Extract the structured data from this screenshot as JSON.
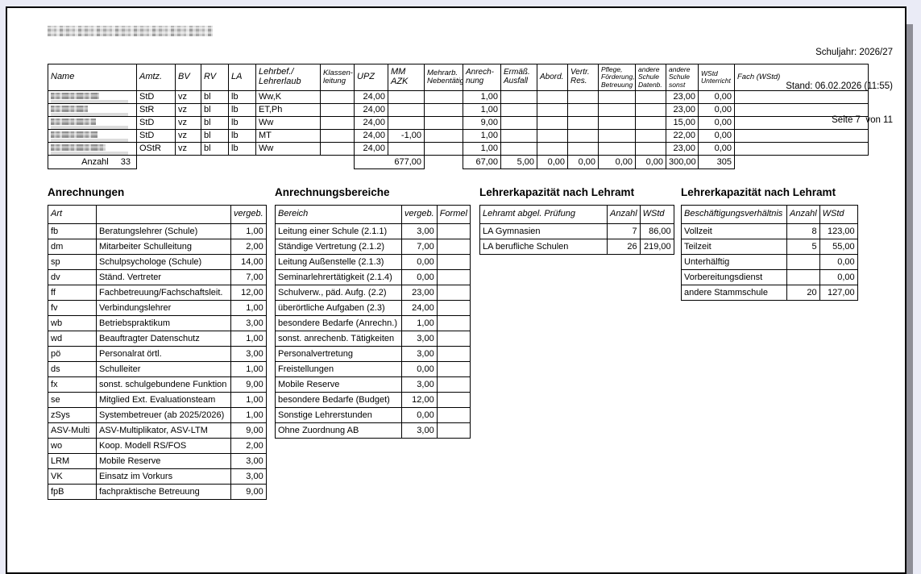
{
  "header": {
    "schuljahr": "Schuljahr: 2026/27",
    "stand": "Stand: 06.02.2026 (11:55)",
    "seite": "Seite 7  von 11"
  },
  "main_table": {
    "columns": [
      "Name",
      "Amtz.",
      "BV",
      "RV",
      "LA",
      "Lehrbef./\nLehrerlaub",
      "Klassen-\nleitung",
      "UPZ",
      "MM AZK",
      "Mehrarb.\nNebentätigk",
      "Anrech-\nnung",
      "Ermäß.\nAusfall",
      "Abord.",
      "Vertr.\nRes.",
      "Pflege,\nFörderung,\nBetreuung",
      "andere\nSchule\nDatenb.",
      "andere\nSchule\nsonst",
      "WStd\nUnterricht",
      "Fach (WStd)"
    ],
    "rows": [
      [
        "",
        "StD",
        "vz",
        "bl",
        "lb",
        "Ww,K",
        "",
        "24,00",
        "",
        "",
        "1,00",
        "",
        "",
        "",
        "",
        "",
        "23,00",
        "0,00",
        ""
      ],
      [
        "",
        "StR",
        "vz",
        "bl",
        "lb",
        "ET,Ph",
        "",
        "24,00",
        "",
        "",
        "1,00",
        "",
        "",
        "",
        "",
        "",
        "23,00",
        "0,00",
        ""
      ],
      [
        "",
        "StD",
        "vz",
        "bl",
        "lb",
        "Ww",
        "",
        "24,00",
        "",
        "",
        "9,00",
        "",
        "",
        "",
        "",
        "",
        "15,00",
        "0,00",
        ""
      ],
      [
        "",
        "StD",
        "vz",
        "bl",
        "lb",
        "MT",
        "",
        "24,00",
        "-1,00",
        "",
        "1,00",
        "",
        "",
        "",
        "",
        "",
        "22,00",
        "0,00",
        ""
      ],
      [
        "",
        "OStR",
        "vz",
        "bl",
        "lb",
        "Ww",
        "",
        "24,00",
        "",
        "",
        "1,00",
        "",
        "",
        "",
        "",
        "",
        "23,00",
        "0,00",
        ""
      ]
    ],
    "totals": {
      "anzahl_label": "Anzahl",
      "anzahl_value": "33",
      "upz": "677,00",
      "anrechnung": "67,00",
      "ermaess_ausfall": "5,00",
      "abord": "0,00",
      "vertr_res": "0,00",
      "pflege": "0,00",
      "andere_schule_datenb": "0,00",
      "andere_schule_sonst": "300,00",
      "wstd_unterricht": "305"
    }
  },
  "anrechnungen": {
    "title": "Anrechnungen",
    "headers": [
      "Art",
      "",
      "vergeb."
    ],
    "rows": [
      [
        "fb",
        "Beratungslehrer (Schule)",
        "1,00"
      ],
      [
        "dm",
        "Mitarbeiter Schulleitung",
        "2,00"
      ],
      [
        "sp",
        "Schulpsychologe (Schule)",
        "14,00"
      ],
      [
        "dv",
        "Ständ. Vertreter",
        "7,00"
      ],
      [
        "ff",
        "Fachbetreuung/Fachschaftsleit.",
        "12,00"
      ],
      [
        "fv",
        "Verbindungslehrer",
        "1,00"
      ],
      [
        "wb",
        "Betriebspraktikum",
        "3,00"
      ],
      [
        "wd",
        "Beauftragter Datenschutz",
        "1,00"
      ],
      [
        "pö",
        "Personalrat örtl.",
        "3,00"
      ],
      [
        "ds",
        "Schulleiter",
        "1,00"
      ],
      [
        "fx",
        "sonst. schulgebundene Funktion",
        "9,00"
      ],
      [
        "se",
        "Mitglied Ext. Evaluationsteam",
        "1,00"
      ],
      [
        "zSys",
        "Systembetreuer (ab 2025/2026)",
        "1,00"
      ],
      [
        "ASV-Multi",
        "ASV-Multiplikator, ASV-LTM",
        "9,00"
      ],
      [
        "wo",
        "Koop. Modell RS/FOS",
        "2,00"
      ],
      [
        "LRM",
        "Mobile Reserve",
        "3,00"
      ],
      [
        "VK",
        "Einsatz im Vorkurs",
        "3,00"
      ],
      [
        "fpB",
        "fachpraktische Betreuung",
        "9,00"
      ]
    ]
  },
  "anrechnungsbereiche": {
    "title": "Anrechnungsbereiche",
    "headers": [
      "Bereich",
      "vergeb.",
      "Formel"
    ],
    "rows": [
      [
        "Leitung einer Schule (2.1.1)",
        "3,00",
        ""
      ],
      [
        "Ständige Vertretung (2.1.2)",
        "7,00",
        ""
      ],
      [
        "Leitung Außenstelle (2.1.3)",
        "0,00",
        ""
      ],
      [
        "Seminarlehrertätigkeit (2.1.4)",
        "0,00",
        ""
      ],
      [
        "Schulverw., päd. Aufg. (2.2)",
        "23,00",
        ""
      ],
      [
        "überörtliche Aufgaben (2.3)",
        "24,00",
        ""
      ],
      [
        "besondere Bedarfe (Anrechn.)",
        "1,00",
        ""
      ],
      [
        "sonst. anrechenb. Tätigkeiten",
        "3,00",
        ""
      ],
      [
        "Personalvertretung",
        "3,00",
        ""
      ],
      [
        "Freistellungen",
        "0,00",
        ""
      ],
      [
        "Mobile Reserve",
        "3,00",
        ""
      ],
      [
        "besondere Bedarfe (Budget)",
        "12,00",
        ""
      ],
      [
        "Sonstige Lehrerstunden",
        "0,00",
        ""
      ],
      [
        "Ohne Zuordnung AB",
        "3,00",
        ""
      ]
    ]
  },
  "kapazitaet_lehramt": {
    "title": "Lehrerkapazität nach Lehramt",
    "headers": [
      "Lehramt abgel. Prüfung",
      "Anzahl",
      "WStd"
    ],
    "rows": [
      [
        "LA Gymnasien",
        "7",
        "86,00"
      ],
      [
        "LA berufliche Schulen",
        "26",
        "219,00"
      ]
    ]
  },
  "kapazitaet_beschaeftigung": {
    "title": "Lehrerkapazität nach Lehramt",
    "headers": [
      "Beschäftigungsverhältnis",
      "Anzahl",
      "WStd"
    ],
    "rows": [
      [
        "Vollzeit",
        "8",
        "123,00"
      ],
      [
        "Teilzeit",
        "5",
        "55,00"
      ],
      [
        "Unterhälftig",
        "",
        "0,00"
      ],
      [
        "Vorbereitungsdienst",
        "",
        "0,00"
      ],
      [
        "andere Stammschule",
        "20",
        "127,00"
      ]
    ]
  }
}
